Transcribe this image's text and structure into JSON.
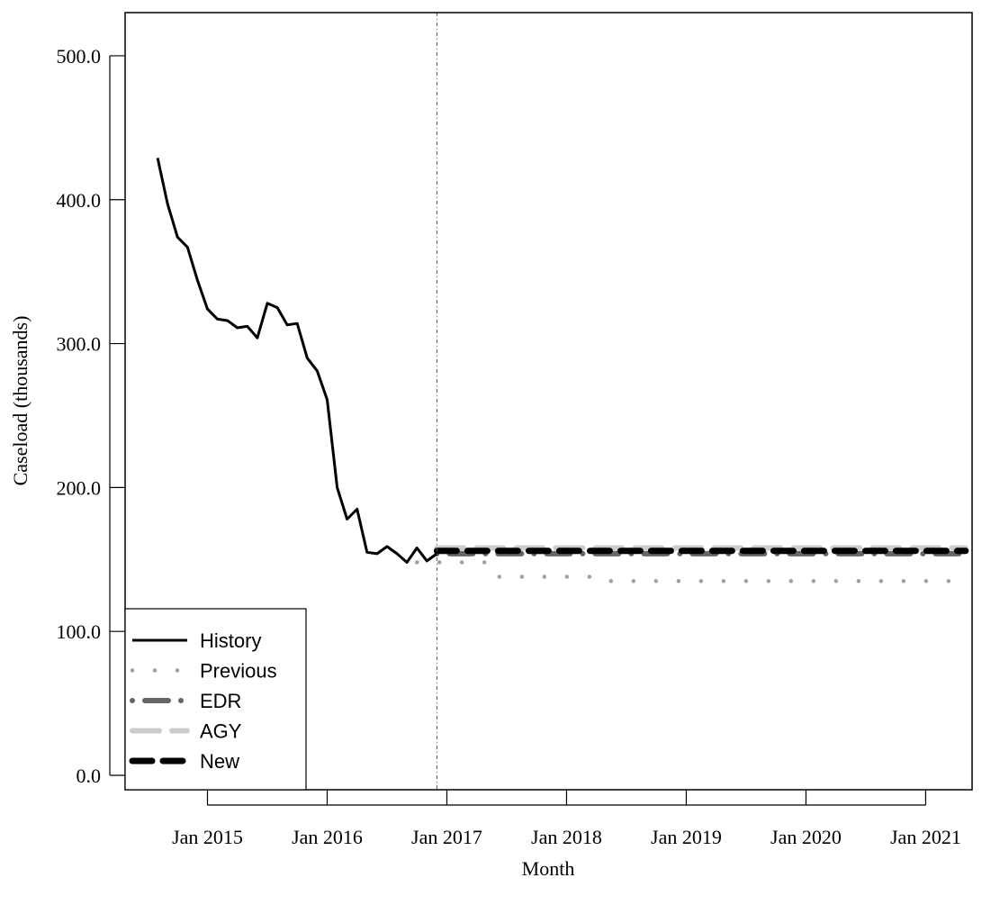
{
  "chart_data": {
    "type": "line",
    "xlabel": "Month",
    "ylabel": "Caseload (thousands)",
    "ylim": [
      -10,
      530
    ],
    "y_ticks": [
      0,
      100,
      200,
      300,
      400,
      500
    ],
    "y_tick_labels": [
      "0.0",
      "100.0",
      "200.0",
      "300.0",
      "400.0",
      "500.0"
    ],
    "x_ticks": [
      "Jan 2015",
      "Jan 2016",
      "Jan 2017",
      "Jan 2018",
      "Jan 2019",
      "Jan 2020",
      "Jan 2021"
    ],
    "x_range": [
      "2014-01",
      "2021-08"
    ],
    "forecast_start": "2016-12",
    "legend_position": "bottom-left",
    "grid": false,
    "series": [
      {
        "name": "History",
        "style": "solid",
        "color": "#000000",
        "start": "2014-08",
        "values": [
          429,
          397,
          374,
          367,
          344,
          324,
          317,
          316,
          311,
          312,
          304,
          328,
          325,
          313,
          314,
          290,
          281,
          261,
          200,
          178,
          185,
          155,
          154,
          159,
          154,
          148,
          158,
          149,
          154
        ]
      },
      {
        "name": "Previous",
        "style": "dotted",
        "color": "#a0a0a0",
        "start": "2016-10",
        "values": [
          148,
          148,
          148,
          148,
          148,
          148,
          148,
          148,
          138,
          138,
          138,
          138,
          138,
          138,
          138,
          138,
          138,
          138,
          138,
          135,
          135,
          135,
          135,
          135,
          135,
          135,
          135,
          135,
          135,
          135,
          135,
          135,
          135,
          135,
          135,
          135,
          135,
          135,
          135,
          135,
          135,
          135,
          135,
          135,
          135,
          135,
          135,
          135,
          135,
          135,
          135,
          135,
          135,
          135,
          135,
          135
        ]
      },
      {
        "name": "EDR",
        "style": "dotdash",
        "color": "#666666",
        "start": "2016-12",
        "values": [
          154,
          154,
          154,
          154,
          154,
          154,
          154,
          154,
          154,
          154,
          154,
          154,
          154,
          154,
          154,
          154,
          154,
          154,
          154,
          154,
          154,
          154,
          154,
          154,
          154,
          154,
          154,
          154,
          154,
          154,
          154,
          154,
          154,
          154,
          154,
          154,
          154,
          154,
          154,
          154,
          154,
          154,
          154,
          154,
          154,
          154,
          154,
          154,
          154,
          154,
          154,
          154,
          154,
          154
        ]
      },
      {
        "name": "AGY",
        "style": "longdash",
        "color": "#cccccc",
        "start": "2016-12",
        "values": [
          158,
          158,
          158,
          158,
          158,
          158,
          158,
          158,
          158,
          158,
          158,
          158,
          158,
          158,
          158,
          158,
          158,
          158,
          158,
          158,
          158,
          158,
          158,
          158,
          158,
          158,
          158,
          158,
          158,
          158,
          158,
          158,
          158,
          158,
          158,
          158,
          158,
          158,
          158,
          158,
          158,
          158,
          158,
          158,
          158,
          158,
          158,
          158,
          158,
          158,
          158,
          158,
          158,
          158
        ]
      },
      {
        "name": "New",
        "style": "dashed",
        "color": "#000000",
        "start": "2016-12",
        "values": [
          156,
          156,
          156,
          156,
          156,
          156,
          156,
          156,
          156,
          156,
          156,
          156,
          156,
          156,
          156,
          156,
          156,
          156,
          156,
          156,
          156,
          156,
          156,
          156,
          156,
          156,
          156,
          156,
          156,
          156,
          156,
          156,
          156,
          156,
          156,
          156,
          156,
          156,
          156,
          156,
          156,
          156,
          156,
          156,
          156,
          156,
          156,
          156,
          156,
          156,
          156,
          156,
          156,
          156
        ]
      }
    ]
  }
}
